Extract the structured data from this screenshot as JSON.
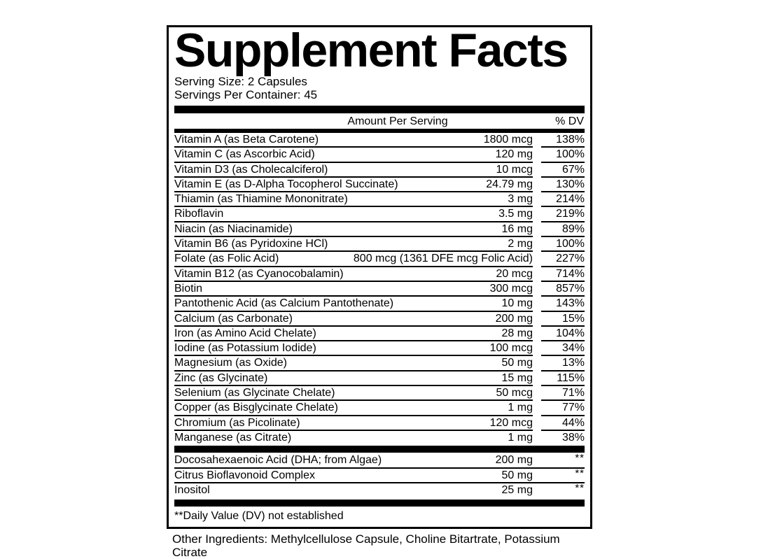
{
  "colors": {
    "ink": "#000000",
    "background": "#ffffff"
  },
  "label": {
    "title": "Supplement Facts",
    "serving_size": "Serving Size: 2 Capsules",
    "servings_per_container": "Servings Per Container: 45",
    "columns": {
      "amount": "Amount Per Serving",
      "dv": "% DV"
    },
    "main_rows": [
      {
        "name": "Vitamin A (as Beta Carotene)",
        "amount": "1800 mcg",
        "dv": "138%"
      },
      {
        "name": "Vitamin C (as Ascorbic Acid)",
        "amount": "120 mg",
        "dv": "100%"
      },
      {
        "name": "Vitamin D3 (as Cholecalciferol)",
        "amount": "10 mcg",
        "dv": "67%"
      },
      {
        "name": "Vitamin E (as D-Alpha Tocopherol Succinate)",
        "amount": "24.79 mg",
        "dv": "130%"
      },
      {
        "name": "Thiamin (as Thiamine Mononitrate)",
        "amount": "3 mg",
        "dv": "214%"
      },
      {
        "name": "Riboflavin",
        "amount": "3.5 mg",
        "dv": "219%"
      },
      {
        "name": "Niacin (as Niacinamide)",
        "amount": "16 mg",
        "dv": "89%"
      },
      {
        "name": "Vitamin B6 (as Pyridoxine HCl)",
        "amount": "2 mg",
        "dv": "100%"
      },
      {
        "name": "Folate (as Folic Acid)",
        "amount": "800 mcg (1361 DFE mcg Folic Acid)",
        "dv": "227%"
      },
      {
        "name": "Vitamin B12 (as Cyanocobalamin)",
        "amount": "20 mcg",
        "dv": "714%"
      },
      {
        "name": "Biotin",
        "amount": "300 mcg",
        "dv": "857%"
      },
      {
        "name": "Pantothenic Acid (as Calcium Pantothenate)",
        "amount": "10 mg",
        "dv": "143%"
      },
      {
        "name": "Calcium (as Carbonate)",
        "amount": "200 mg",
        "dv": "15%"
      },
      {
        "name": "Iron (as Amino Acid Chelate)",
        "amount": "28 mg",
        "dv": "104%"
      },
      {
        "name": "Iodine (as Potassium Iodide)",
        "amount": "100 mcg",
        "dv": "34%"
      },
      {
        "name": "Magnesium (as Oxide)",
        "amount": "50 mg",
        "dv": "13%"
      },
      {
        "name": "Zinc (as Glycinate)",
        "amount": "15 mg",
        "dv": "115%"
      },
      {
        "name": "Selenium (as Glycinate Chelate)",
        "amount": "50 mcg",
        "dv": "71%"
      },
      {
        "name": "Copper (as Bisglycinate Chelate)",
        "amount": "1 mg",
        "dv": "77%"
      },
      {
        "name": "Chromium (as Picolinate)",
        "amount": "120 mcg",
        "dv": "44%"
      },
      {
        "name": "Manganese (as Citrate)",
        "amount": "1 mg",
        "dv": "38%"
      }
    ],
    "extra_rows": [
      {
        "name": "Docosahexaenoic Acid (DHA; from Algae)",
        "amount": "200 mg",
        "dv": "**"
      },
      {
        "name": "Citrus Bioflavonoid Complex",
        "amount": "50 mg",
        "dv": "**"
      },
      {
        "name": "Inositol",
        "amount": "25 mg",
        "dv": "**"
      }
    ],
    "footnote": "**Daily Value (DV) not established",
    "other_ingredients": "Other Ingredients: Methylcellulose Capsule, Choline Bitartrate, Potassium Citrate"
  }
}
